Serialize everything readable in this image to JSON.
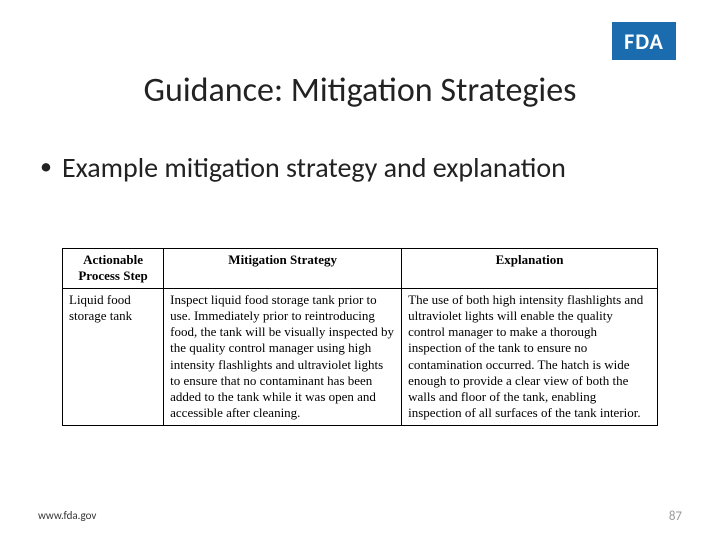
{
  "logo": {
    "text": "FDA",
    "bg": "#1a6caf",
    "fg": "#ffffff"
  },
  "title": "Guidance: Mitigation Strategies",
  "bullet": "Example mitigation strategy and explanation",
  "table": {
    "headers": [
      "Actionable Process Step",
      "Mitigation Strategy",
      "Explanation"
    ],
    "row": {
      "step": "Liquid food storage tank",
      "strategy": "Inspect liquid food storage tank prior to use. Immediately prior to reintroducing food, the tank will be visually inspected by the quality control manager using high intensity flashlights and ultraviolet lights to ensure that no contaminant has been added to the tank while it was open and accessible after cleaning.",
      "explanation": "The use of both high intensity flashlights and ultraviolet lights will enable the quality control manager to make a thorough inspection of the tank to ensure no contamination occurred. The hatch is wide enough to provide a clear view of both the walls and floor of the tank, enabling inspection of all surfaces of the tank interior."
    }
  },
  "footer": {
    "url": "www.fda.gov",
    "page": "87"
  },
  "colors": {
    "text": "#222222",
    "logo_bg": "#1a6caf",
    "page_num": "#9a9a9a"
  }
}
